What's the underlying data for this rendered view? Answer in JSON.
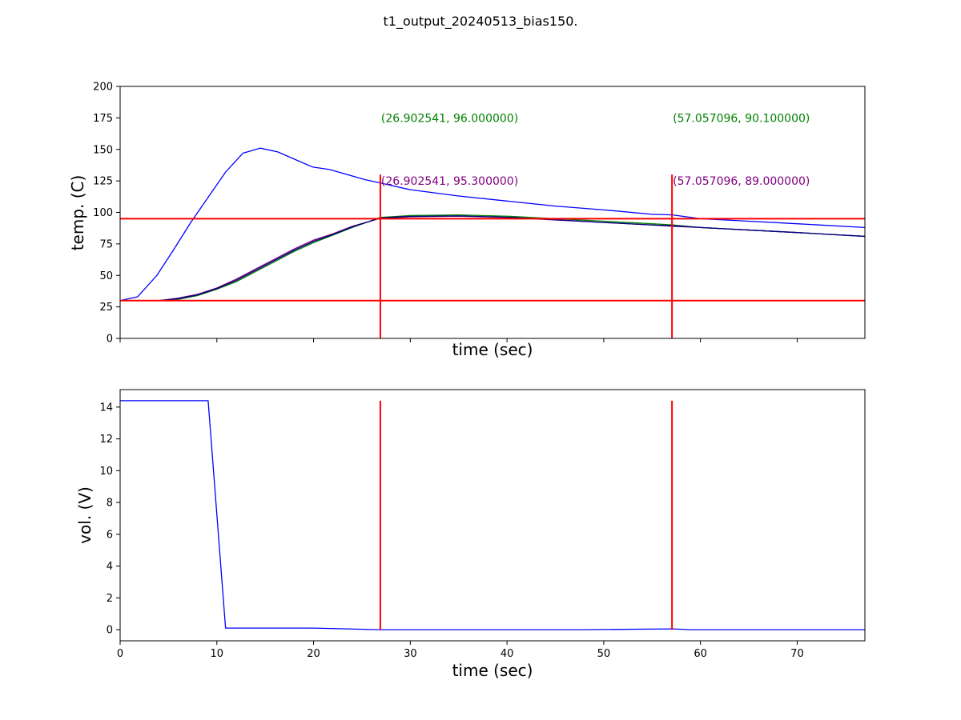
{
  "figure": {
    "title": "t1_output_20240513_bias150."
  },
  "colors": {
    "temp_series_1": "#0000ff",
    "temp_series_2": "#008000",
    "temp_series_3": "#800080",
    "temp_series_4": "#000080",
    "voltage_series": "#0000ff",
    "markers": "#ff0000",
    "anno_green": "#008000",
    "anno_purple": "#800080"
  },
  "chart_data": [
    {
      "type": "line",
      "title": "",
      "xlabel": "time (sec)",
      "ylabel": "temp. (C)",
      "xlim": [
        0,
        77
      ],
      "ylim": [
        0,
        200
      ],
      "yticks": [
        0,
        25,
        50,
        75,
        100,
        125,
        150,
        175,
        200
      ],
      "xticks": [
        0,
        10,
        20,
        30,
        40,
        50,
        60,
        70
      ],
      "show_x_tick_labels": false,
      "grid": false,
      "legend": "none",
      "series": [
        {
          "color": "#0000ff",
          "x": [
            0,
            1.8,
            3.8,
            5.5,
            7.3,
            9.1,
            10.9,
            12.7,
            14.5,
            16.3,
            18.1,
            19.9,
            21.7,
            23.5,
            25.3,
            27.1,
            30,
            35,
            40,
            45,
            50,
            55,
            57.1,
            60,
            65,
            70,
            77
          ],
          "y": [
            30,
            33,
            50,
            70,
            92,
            112,
            132,
            147,
            151,
            148,
            142,
            136,
            134,
            130,
            126,
            123,
            118,
            113,
            109,
            105,
            102,
            98.5,
            98,
            95,
            93,
            91,
            88
          ]
        },
        {
          "color": "#008000",
          "x": [
            0,
            4,
            6,
            8,
            10,
            12,
            14,
            16,
            18,
            20,
            22,
            24,
            26.9,
            30,
            35,
            40,
            45,
            50,
            55,
            57.1,
            60,
            65,
            70,
            77
          ],
          "y": [
            30,
            30,
            31,
            34,
            39,
            45,
            53,
            61,
            69,
            76,
            82,
            88,
            96,
            97.5,
            98,
            97,
            95,
            93,
            91,
            90.1,
            88,
            86,
            84,
            81
          ]
        },
        {
          "color": "#800080",
          "x": [
            0,
            4,
            6,
            8,
            10,
            12,
            14,
            16,
            18,
            20,
            22,
            24,
            26.9,
            30,
            35,
            40,
            45,
            50,
            55,
            57.1,
            60,
            65,
            70,
            77
          ],
          "y": [
            30,
            30,
            32,
            35,
            40,
            47,
            55,
            63,
            71,
            78,
            83,
            89,
            95.3,
            96.5,
            97,
            96,
            94,
            92,
            90,
            89,
            88,
            86,
            84,
            81
          ]
        },
        {
          "color": "#000080",
          "x": [
            0,
            4,
            6,
            8,
            10,
            12,
            14,
            16,
            18,
            20,
            22,
            24,
            26.9,
            30,
            35,
            40,
            45,
            50,
            55,
            57.1,
            60,
            65,
            70,
            77
          ],
          "y": [
            30,
            30,
            31.5,
            34.5,
            39.5,
            46,
            54,
            62,
            70,
            77,
            82.5,
            88.5,
            95.6,
            96.8,
            97.2,
            96.2,
            94.2,
            92,
            90,
            89.5,
            88,
            86,
            84,
            81
          ]
        }
      ],
      "hlines": [
        30,
        95
      ],
      "vlines": [
        {
          "x": 26.902541,
          "ymin": 0,
          "ymax": 130
        },
        {
          "x": 57.057096,
          "ymin": 0,
          "ymax": 130
        }
      ],
      "annotations": [
        {
          "text": "(26.902541, 96.000000)",
          "x": 26.902541,
          "y": 175,
          "color": "#008000"
        },
        {
          "text": "(57.057096, 90.100000)",
          "x": 57.057096,
          "y": 175,
          "color": "#008000"
        },
        {
          "text": "(26.902541, 95.300000)",
          "x": 26.902541,
          "y": 125,
          "color": "#800080"
        },
        {
          "text": "(57.057096, 89.000000)",
          "x": 57.057096,
          "y": 125,
          "color": "#800080"
        }
      ]
    },
    {
      "type": "line",
      "title": "",
      "xlabel": "time (sec)",
      "ylabel": "vol. (V)",
      "xlim": [
        0,
        77
      ],
      "ylim": [
        -0.7,
        15.1
      ],
      "yticks": [
        0,
        2,
        4,
        6,
        8,
        10,
        12,
        14
      ],
      "xticks": [
        0,
        10,
        20,
        30,
        40,
        50,
        60,
        70
      ],
      "show_x_tick_labels": true,
      "grid": false,
      "legend": "none",
      "series": [
        {
          "color": "#0000ff",
          "x": [
            0,
            9.1,
            10.9,
            20,
            26.9,
            48,
            57.1,
            59,
            77
          ],
          "y": [
            14.4,
            14.4,
            0.1,
            0.1,
            0,
            0,
            0.05,
            0,
            0
          ]
        }
      ],
      "hlines": [],
      "vlines": [
        {
          "x": 26.902541,
          "ymin": 0,
          "ymax": 14.4
        },
        {
          "x": 57.057096,
          "ymin": 0,
          "ymax": 14.4
        }
      ],
      "annotations": []
    }
  ]
}
